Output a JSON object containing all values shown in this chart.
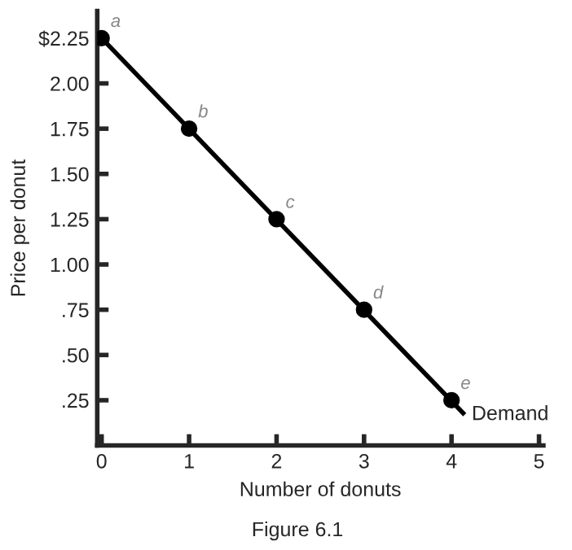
{
  "chart_data": {
    "type": "line",
    "xlabel": "Number of donuts",
    "ylabel": "Price per donut",
    "series": [
      {
        "name": "Demand",
        "color": "#000000",
        "marker": "none",
        "x": [
          0,
          4.15
        ],
        "values": [
          2.25,
          0.17
        ]
      },
      {
        "type": "scatter",
        "color": "#000000",
        "marker": "circle",
        "x": [
          0,
          1,
          2,
          3,
          4
        ],
        "values": [
          2.25,
          1.75,
          1.25,
          0.75,
          0.25
        ]
      }
    ],
    "xlim": [
      -0.05,
      5.05
    ],
    "ylim": [
      0,
      2.4
    ],
    "xticks": [
      0,
      1,
      2,
      3,
      4,
      5
    ],
    "yticks": [
      {
        "value": 0.25,
        "label": ".25"
      },
      {
        "value": 0.5,
        "label": ".50"
      },
      {
        "value": 0.75,
        "label": ".75"
      },
      {
        "value": 1,
        "label": "1.00"
      },
      {
        "value": 1.25,
        "label": "1.25"
      },
      {
        "value": 1.5,
        "label": "1.50"
      },
      {
        "value": 1.75,
        "label": "1.75"
      },
      {
        "value": 2,
        "label": "2.00"
      },
      {
        "value": 2.25,
        "label": "$2.25"
      }
    ],
    "annotations": [
      {
        "text": "a",
        "x": 0,
        "y": 2.25
      },
      {
        "text": "b",
        "x": 1,
        "y": 1.75
      },
      {
        "text": "c",
        "x": 2,
        "y": 1.25
      },
      {
        "text": "d",
        "x": 3,
        "y": 0.75
      },
      {
        "text": "e",
        "x": 4,
        "y": 0.25
      },
      "Figure 6.1"
    ],
    "grid": false,
    "legend": false
  }
}
